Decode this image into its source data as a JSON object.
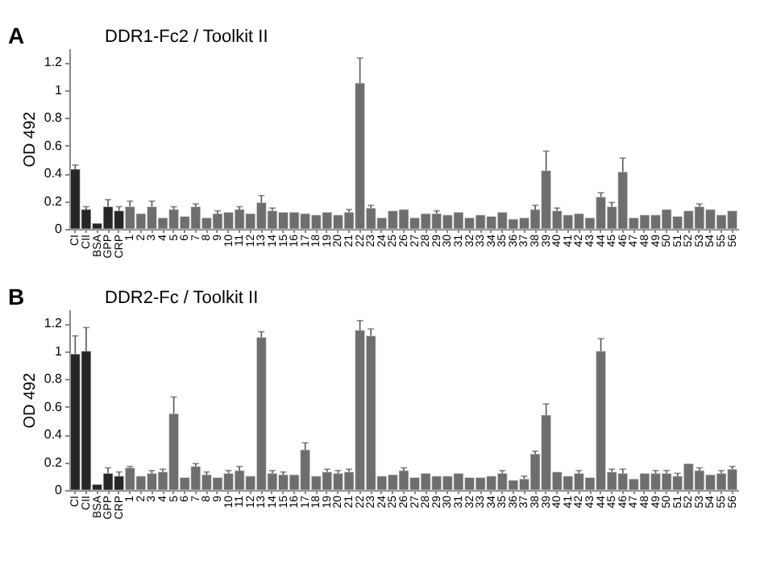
{
  "chart_data": [
    {
      "type": "bar",
      "title": "DDR1-Fc2 / Toolkit II",
      "ylabel": "OD 492",
      "annotations": [
        "A"
      ],
      "categories": [
        "CI",
        "CII",
        "BSA",
        "GPP",
        "CRP",
        "1",
        "2",
        "3",
        "4",
        "5",
        "6",
        "7",
        "8",
        "9",
        "10",
        "11",
        "12",
        "13",
        "14",
        "15",
        "16",
        "17",
        "18",
        "19",
        "20",
        "21",
        "22",
        "23",
        "24",
        "25",
        "26",
        "27",
        "28",
        "29",
        "30",
        "31",
        "32",
        "33",
        "34",
        "35",
        "36",
        "37",
        "38",
        "39",
        "40",
        "41",
        "42",
        "43",
        "44",
        "45",
        "46",
        "47",
        "48",
        "49",
        "50",
        "51",
        "52",
        "53",
        "54",
        "55",
        "56"
      ],
      "values": [
        0.43,
        0.14,
        0.04,
        0.16,
        0.13,
        0.16,
        0.11,
        0.16,
        0.08,
        0.14,
        0.09,
        0.16,
        0.08,
        0.11,
        0.12,
        0.14,
        0.11,
        0.19,
        0.13,
        0.12,
        0.12,
        0.11,
        0.1,
        0.12,
        0.1,
        0.12,
        1.05,
        0.15,
        0.08,
        0.13,
        0.14,
        0.08,
        0.11,
        0.11,
        0.1,
        0.12,
        0.08,
        0.1,
        0.09,
        0.12,
        0.07,
        0.08,
        0.14,
        0.42,
        0.13,
        0.1,
        0.11,
        0.08,
        0.23,
        0.16,
        0.41,
        0.08,
        0.1,
        0.1,
        0.14,
        0.09,
        0.13,
        0.16,
        0.14,
        0.1,
        0.13
      ],
      "errors": [
        0.03,
        0.02,
        null,
        0.05,
        0.03,
        0.04,
        null,
        0.04,
        null,
        0.02,
        null,
        0.02,
        null,
        0.02,
        null,
        0.02,
        null,
        0.05,
        0.02,
        null,
        null,
        null,
        null,
        null,
        null,
        0.02,
        0.18,
        0.02,
        null,
        null,
        null,
        null,
        null,
        0.02,
        null,
        null,
        null,
        null,
        null,
        null,
        null,
        null,
        0.03,
        0.14,
        0.02,
        null,
        null,
        null,
        0.03,
        0.03,
        0.1,
        null,
        null,
        null,
        null,
        null,
        null,
        0.02,
        null,
        null,
        null
      ],
      "colors": [
        "#262626",
        "#262626",
        "#262626",
        "#262626",
        "#262626",
        "#6e6e6e",
        "#6e6e6e",
        "#6e6e6e",
        "#6e6e6e",
        "#6e6e6e",
        "#6e6e6e",
        "#6e6e6e",
        "#6e6e6e",
        "#6e6e6e",
        "#6e6e6e",
        "#6e6e6e",
        "#6e6e6e",
        "#6e6e6e",
        "#6e6e6e",
        "#6e6e6e",
        "#6e6e6e",
        "#6e6e6e",
        "#6e6e6e",
        "#6e6e6e",
        "#6e6e6e",
        "#6e6e6e",
        "#6e6e6e",
        "#6e6e6e",
        "#6e6e6e",
        "#6e6e6e",
        "#6e6e6e",
        "#6e6e6e",
        "#6e6e6e",
        "#6e6e6e",
        "#6e6e6e",
        "#6e6e6e",
        "#6e6e6e",
        "#6e6e6e",
        "#6e6e6e",
        "#6e6e6e",
        "#6e6e6e",
        "#6e6e6e",
        "#6e6e6e",
        "#6e6e6e",
        "#6e6e6e",
        "#6e6e6e",
        "#6e6e6e",
        "#6e6e6e",
        "#6e6e6e",
        "#6e6e6e",
        "#6e6e6e",
        "#6e6e6e",
        "#6e6e6e",
        "#6e6e6e",
        "#6e6e6e",
        "#6e6e6e",
        "#6e6e6e",
        "#6e6e6e",
        "#6e6e6e",
        "#6e6e6e",
        "#6e6e6e"
      ],
      "ylim": [
        0,
        1.3
      ],
      "yticks": [
        0,
        0.2,
        0.4,
        0.6,
        0.8,
        1,
        1.2
      ],
      "grid": false
    },
    {
      "type": "bar",
      "title": "DDR2-Fc / Toolkit II",
      "ylabel": "OD 492",
      "annotations": [
        "B"
      ],
      "categories": [
        "CI",
        "CII",
        "BSA",
        "GPP",
        "CRP",
        "1",
        "2",
        "3",
        "4",
        "5",
        "6",
        "7",
        "8",
        "9",
        "10",
        "11",
        "12",
        "13",
        "14",
        "15",
        "16",
        "17",
        "18",
        "19",
        "20",
        "21",
        "22",
        "23",
        "24",
        "25",
        "26",
        "27",
        "28",
        "29",
        "30",
        "31",
        "32",
        "33",
        "34",
        "35",
        "36",
        "37",
        "38",
        "39",
        "40",
        "41",
        "42",
        "43",
        "44",
        "45",
        "46",
        "47",
        "48",
        "49",
        "50",
        "51",
        "52",
        "53",
        "54",
        "55",
        "56"
      ],
      "values": [
        0.98,
        1.0,
        0.04,
        0.12,
        0.1,
        0.16,
        0.1,
        0.12,
        0.13,
        0.55,
        0.09,
        0.17,
        0.11,
        0.09,
        0.12,
        0.14,
        0.1,
        1.1,
        0.12,
        0.11,
        0.11,
        0.29,
        0.1,
        0.13,
        0.12,
        0.13,
        1.15,
        1.11,
        0.1,
        0.11,
        0.14,
        0.09,
        0.12,
        0.1,
        0.1,
        0.12,
        0.09,
        0.09,
        0.1,
        0.12,
        0.07,
        0.08,
        0.26,
        0.54,
        0.13,
        0.1,
        0.12,
        0.09,
        1.0,
        0.13,
        0.12,
        0.08,
        0.12,
        0.12,
        0.12,
        0.1,
        0.19,
        0.14,
        0.11,
        0.12,
        0.15
      ],
      "errors": [
        0.13,
        0.17,
        null,
        0.04,
        0.03,
        0.01,
        null,
        0.02,
        0.02,
        0.12,
        null,
        0.02,
        0.02,
        null,
        0.02,
        0.03,
        null,
        0.04,
        0.02,
        0.02,
        null,
        0.05,
        null,
        0.02,
        0.02,
        0.02,
        0.07,
        0.05,
        null,
        null,
        0.02,
        null,
        null,
        null,
        null,
        null,
        null,
        null,
        null,
        0.02,
        null,
        0.02,
        0.02,
        0.08,
        null,
        null,
        0.02,
        null,
        0.09,
        0.02,
        0.03,
        null,
        null,
        0.02,
        0.02,
        0.02,
        null,
        0.02,
        null,
        0.02,
        0.02
      ],
      "colors": [
        "#262626",
        "#262626",
        "#262626",
        "#262626",
        "#262626",
        "#6e6e6e",
        "#6e6e6e",
        "#6e6e6e",
        "#6e6e6e",
        "#6e6e6e",
        "#6e6e6e",
        "#6e6e6e",
        "#6e6e6e",
        "#6e6e6e",
        "#6e6e6e",
        "#6e6e6e",
        "#6e6e6e",
        "#6e6e6e",
        "#6e6e6e",
        "#6e6e6e",
        "#6e6e6e",
        "#6e6e6e",
        "#6e6e6e",
        "#6e6e6e",
        "#6e6e6e",
        "#6e6e6e",
        "#6e6e6e",
        "#6e6e6e",
        "#6e6e6e",
        "#6e6e6e",
        "#6e6e6e",
        "#6e6e6e",
        "#6e6e6e",
        "#6e6e6e",
        "#6e6e6e",
        "#6e6e6e",
        "#6e6e6e",
        "#6e6e6e",
        "#6e6e6e",
        "#6e6e6e",
        "#6e6e6e",
        "#6e6e6e",
        "#6e6e6e",
        "#6e6e6e",
        "#6e6e6e",
        "#6e6e6e",
        "#6e6e6e",
        "#6e6e6e",
        "#6e6e6e",
        "#6e6e6e",
        "#6e6e6e",
        "#6e6e6e",
        "#6e6e6e",
        "#6e6e6e",
        "#6e6e6e",
        "#6e6e6e",
        "#6e6e6e",
        "#6e6e6e",
        "#6e6e6e",
        "#6e6e6e",
        "#6e6e6e"
      ],
      "ylim": [
        0,
        1.3
      ],
      "yticks": [
        0,
        0.2,
        0.4,
        0.6,
        0.8,
        1,
        1.2
      ],
      "grid": false
    }
  ]
}
